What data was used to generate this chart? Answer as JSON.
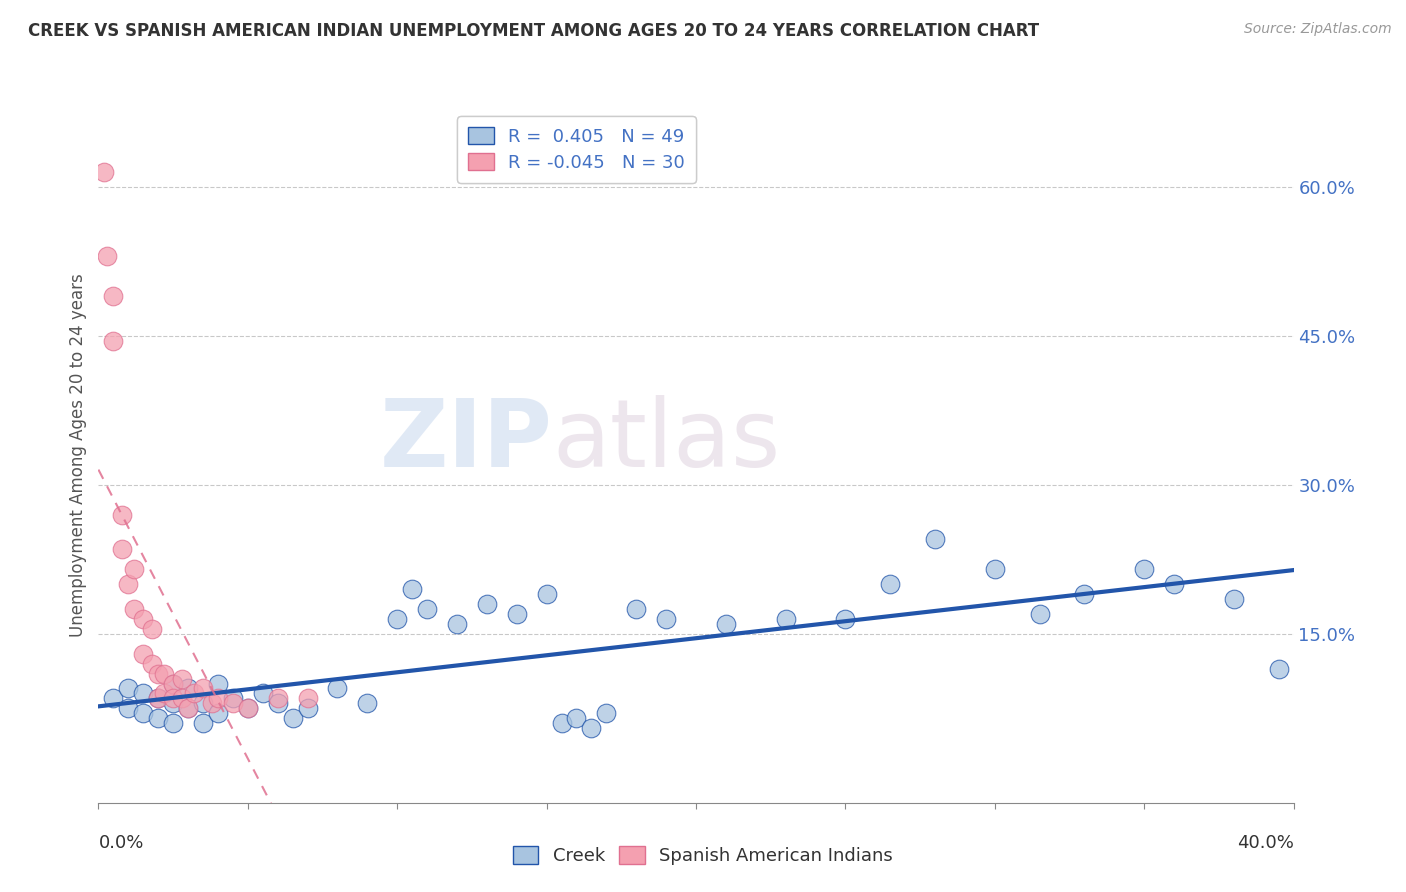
{
  "title": "CREEK VS SPANISH AMERICAN INDIAN UNEMPLOYMENT AMONG AGES 20 TO 24 YEARS CORRELATION CHART",
  "source": "Source: ZipAtlas.com",
  "ylabel": "Unemployment Among Ages 20 to 24 years",
  "xlim": [
    0.0,
    0.4
  ],
  "ylim": [
    -0.02,
    0.68
  ],
  "yticks": [
    0.15,
    0.3,
    0.45,
    0.6
  ],
  "ytick_labels": [
    "15.0%",
    "30.0%",
    "45.0%",
    "60.0%"
  ],
  "creek_R": 0.405,
  "creek_N": 49,
  "spanish_R": -0.045,
  "spanish_N": 30,
  "creek_color": "#a8c4e0",
  "spanish_color": "#f4a0b0",
  "creek_line_color": "#2255aa",
  "spanish_line_color": "#e07090",
  "watermark_zip": "ZIP",
  "watermark_atlas": "atlas",
  "creek_scatter_x": [
    0.005,
    0.01,
    0.01,
    0.015,
    0.015,
    0.02,
    0.02,
    0.025,
    0.025,
    0.025,
    0.03,
    0.03,
    0.035,
    0.035,
    0.04,
    0.04,
    0.045,
    0.05,
    0.055,
    0.06,
    0.065,
    0.07,
    0.08,
    0.09,
    0.1,
    0.105,
    0.11,
    0.12,
    0.13,
    0.14,
    0.15,
    0.155,
    0.16,
    0.165,
    0.17,
    0.18,
    0.19,
    0.21,
    0.23,
    0.25,
    0.265,
    0.28,
    0.3,
    0.315,
    0.33,
    0.35,
    0.36,
    0.38,
    0.395
  ],
  "creek_scatter_y": [
    0.085,
    0.095,
    0.075,
    0.09,
    0.07,
    0.085,
    0.065,
    0.08,
    0.1,
    0.06,
    0.095,
    0.075,
    0.08,
    0.06,
    0.1,
    0.07,
    0.085,
    0.075,
    0.09,
    0.08,
    0.065,
    0.075,
    0.095,
    0.08,
    0.165,
    0.195,
    0.175,
    0.16,
    0.18,
    0.17,
    0.19,
    0.06,
    0.065,
    0.055,
    0.07,
    0.175,
    0.165,
    0.16,
    0.165,
    0.165,
    0.2,
    0.245,
    0.215,
    0.17,
    0.19,
    0.215,
    0.2,
    0.185,
    0.115
  ],
  "spanish_scatter_x": [
    0.002,
    0.003,
    0.005,
    0.005,
    0.008,
    0.008,
    0.01,
    0.012,
    0.012,
    0.015,
    0.015,
    0.018,
    0.018,
    0.02,
    0.02,
    0.022,
    0.022,
    0.025,
    0.025,
    0.028,
    0.028,
    0.03,
    0.032,
    0.035,
    0.038,
    0.04,
    0.045,
    0.05,
    0.06,
    0.07
  ],
  "spanish_scatter_y": [
    0.615,
    0.53,
    0.49,
    0.445,
    0.27,
    0.235,
    0.2,
    0.175,
    0.215,
    0.165,
    0.13,
    0.155,
    0.12,
    0.11,
    0.085,
    0.11,
    0.09,
    0.1,
    0.085,
    0.105,
    0.085,
    0.075,
    0.09,
    0.095,
    0.08,
    0.085,
    0.08,
    0.075,
    0.085,
    0.085
  ]
}
